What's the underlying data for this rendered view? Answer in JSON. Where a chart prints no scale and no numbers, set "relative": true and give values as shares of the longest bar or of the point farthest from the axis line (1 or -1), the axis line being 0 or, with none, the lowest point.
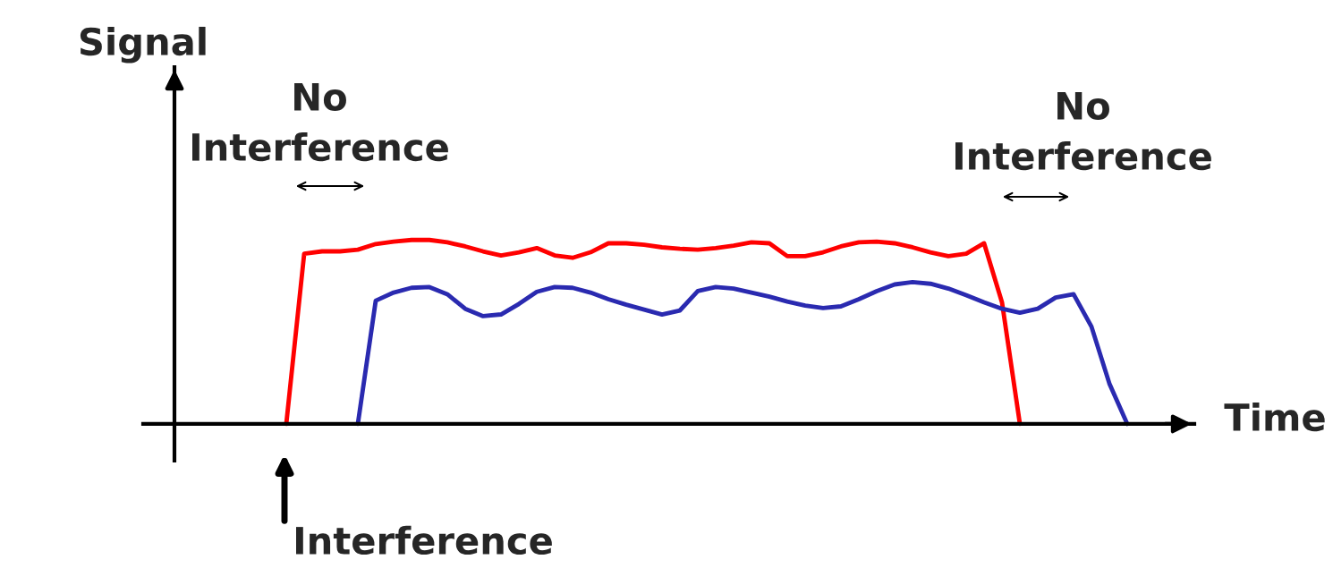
{
  "chart_data": {
    "type": "line",
    "relative": true,
    "xlabel": "Time",
    "ylabel": "Signal",
    "categories": [
      null,
      null,
      null,
      null,
      null,
      null,
      null,
      null,
      null,
      null,
      null,
      null,
      null,
      null,
      null,
      null,
      null,
      null,
      null,
      null,
      null,
      null,
      null,
      null,
      null,
      null,
      null,
      null,
      null,
      null,
      null,
      null,
      null,
      null,
      null,
      null,
      null,
      null,
      null,
      null,
      null,
      null,
      null,
      null,
      null,
      null,
      null,
      null,
      null
    ],
    "series": [
      {
        "color": "#ff0000",
        "values": [
          null,
          0,
          0.925,
          0.938,
          0.938,
          0.947,
          0.978,
          0.991,
          1.0,
          1.0,
          0.987,
          0.965,
          0.938,
          0.916,
          0.933,
          0.956,
          0.916,
          0.903,
          0.933,
          0.982,
          0.982,
          0.974,
          0.96,
          0.952,
          0.947,
          0.956,
          0.969,
          0.987,
          0.982,
          0.912,
          0.912,
          0.933,
          0.965,
          0.987,
          0.991,
          0.982,
          0.96,
          0.933,
          0.912,
          0.925,
          0.982,
          0.661,
          0,
          null,
          null,
          null,
          null,
          null,
          null
        ]
      },
      {
        "color": "#2a2ab0",
        "values": [
          null,
          null,
          null,
          null,
          null,
          0,
          0.67,
          0.714,
          0.74,
          0.744,
          0.705,
          0.626,
          0.586,
          0.595,
          0.652,
          0.718,
          0.744,
          0.74,
          0.714,
          0.678,
          0.648,
          0.621,
          0.595,
          0.617,
          0.722,
          0.744,
          0.736,
          0.714,
          0.692,
          0.665,
          0.643,
          0.63,
          0.639,
          0.678,
          0.722,
          0.758,
          0.771,
          0.762,
          0.736,
          0.7,
          0.661,
          0.626,
          0.604,
          0.626,
          0.687,
          0.705,
          0.529,
          0.22,
          0
        ]
      }
    ],
    "annotations": [
      "No\nInterference",
      "No\nInterference",
      "Interference"
    ],
    "grid": false,
    "legend": false,
    "marker": "none",
    "line_style": "solid"
  }
}
